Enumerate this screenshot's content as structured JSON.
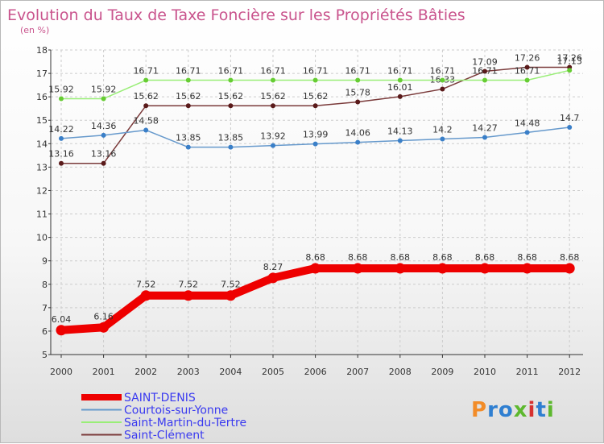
{
  "chart_data": {
    "type": "line",
    "title": "Evolution du Taux de Taxe Foncière sur les Propriétés Bâties",
    "subtitle": "(en %)",
    "x": [
      "2000",
      "2001",
      "2002",
      "2003",
      "2004",
      "2005",
      "2006",
      "2007",
      "2008",
      "2009",
      "2010",
      "2011",
      "2012"
    ],
    "ylim": [
      5,
      18
    ],
    "yticks": [
      5,
      6,
      7,
      8,
      9,
      10,
      11,
      12,
      13,
      14,
      15,
      16,
      17,
      18
    ],
    "series": [
      {
        "name": "SAINT-DENIS",
        "color": "#ee0000",
        "thick": true,
        "values": [
          6.04,
          6.16,
          7.52,
          7.52,
          7.52,
          8.27,
          8.68,
          8.68,
          8.68,
          8.68,
          8.68,
          8.68,
          8.68
        ]
      },
      {
        "name": "Courtois-sur-Yonne",
        "color": "#6699cc",
        "point": "#3a7fc8",
        "values": [
          14.22,
          14.36,
          14.58,
          13.85,
          13.85,
          13.92,
          13.99,
          14.06,
          14.13,
          14.2,
          14.27,
          14.48,
          14.7
        ]
      },
      {
        "name": "Saint-Martin-du-Tertre",
        "color": "#99ee77",
        "point": "#66cc33",
        "values": [
          15.92,
          15.92,
          16.71,
          16.71,
          16.71,
          16.71,
          16.71,
          16.71,
          16.71,
          16.71,
          16.71,
          16.71,
          17.13
        ]
      },
      {
        "name": "Saint-Clément",
        "color": "#7a3a3a",
        "point": "#5a1a1a",
        "values": [
          13.16,
          13.16,
          15.62,
          15.62,
          15.62,
          15.62,
          15.62,
          15.78,
          16.01,
          16.33,
          17.09,
          17.26,
          17.26
        ]
      }
    ],
    "labels": [
      [
        "6.04",
        "6.16",
        "7.52",
        "7.52",
        "7.52",
        "8.27",
        "8.68",
        "8.68",
        "8.68",
        "8.68",
        "8.68",
        "8.68",
        "8.68"
      ],
      [
        "14.22",
        "14.36",
        "14.58",
        "13.85",
        "13.85",
        "13.92",
        "13.99",
        "14.06",
        "14.13",
        "14.2",
        "14.27",
        "14.48",
        "14.7"
      ],
      [
        "15.92",
        "15.92",
        "16.71",
        "16.71",
        "16.71",
        "16.71",
        "16.71",
        "16.71",
        "16.71",
        "16.71",
        "16.71",
        "16.71",
        "17.13"
      ],
      [
        "13.16",
        "13.16",
        "15.62",
        "15.62",
        "15.62",
        "15.62",
        "15.62",
        "15.78",
        "16.01",
        "16.33",
        "17.09",
        "17.26",
        "17.26"
      ]
    ],
    "colors": {
      "title": "#c9548d",
      "axis": "#333333",
      "grid": "#cccccc",
      "legend_text": "#3a3af0"
    }
  },
  "logo": {
    "text": "Proxiti"
  }
}
